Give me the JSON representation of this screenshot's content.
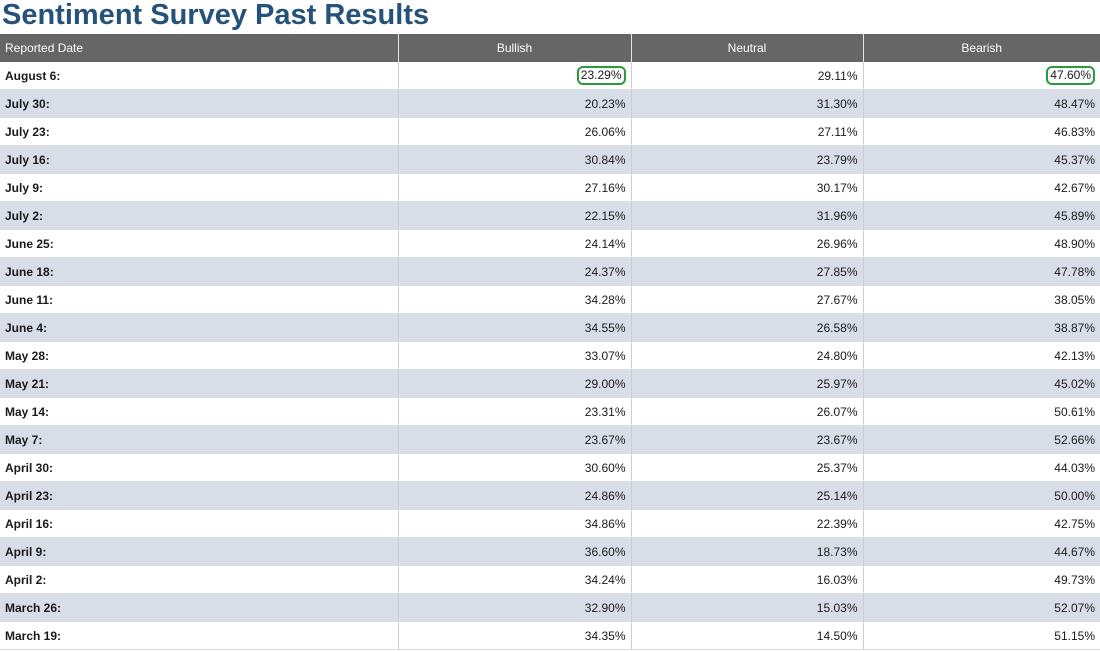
{
  "page": {
    "title": "Sentiment Survey Past Results"
  },
  "table": {
    "headers": [
      "Reported Date",
      "Bullish",
      "Neutral",
      "Bearish"
    ],
    "rows": [
      {
        "date": "August 6:",
        "bullish": "23.29%",
        "neutral": "29.11%",
        "bearish": "47.60%"
      },
      {
        "date": "July 30:",
        "bullish": "20.23%",
        "neutral": "31.30%",
        "bearish": "48.47%"
      },
      {
        "date": "July 23:",
        "bullish": "26.06%",
        "neutral": "27.11%",
        "bearish": "46.83%"
      },
      {
        "date": "July 16:",
        "bullish": "30.84%",
        "neutral": "23.79%",
        "bearish": "45.37%"
      },
      {
        "date": "July 9:",
        "bullish": "27.16%",
        "neutral": "30.17%",
        "bearish": "42.67%"
      },
      {
        "date": "July 2:",
        "bullish": "22.15%",
        "neutral": "31.96%",
        "bearish": "45.89%"
      },
      {
        "date": "June 25:",
        "bullish": "24.14%",
        "neutral": "26.96%",
        "bearish": "48.90%"
      },
      {
        "date": "June 18:",
        "bullish": "24.37%",
        "neutral": "27.85%",
        "bearish": "47.78%"
      },
      {
        "date": "June 11:",
        "bullish": "34.28%",
        "neutral": "27.67%",
        "bearish": "38.05%"
      },
      {
        "date": "June 4:",
        "bullish": "34.55%",
        "neutral": "26.58%",
        "bearish": "38.87%"
      },
      {
        "date": "May 28:",
        "bullish": "33.07%",
        "neutral": "24.80%",
        "bearish": "42.13%"
      },
      {
        "date": "May 21:",
        "bullish": "29.00%",
        "neutral": "25.97%",
        "bearish": "45.02%"
      },
      {
        "date": "May 14:",
        "bullish": "23.31%",
        "neutral": "26.07%",
        "bearish": "50.61%"
      },
      {
        "date": "May 7:",
        "bullish": "23.67%",
        "neutral": "23.67%",
        "bearish": "52.66%"
      },
      {
        "date": "April 30:",
        "bullish": "30.60%",
        "neutral": "25.37%",
        "bearish": "44.03%"
      },
      {
        "date": "April 23:",
        "bullish": "24.86%",
        "neutral": "25.14%",
        "bearish": "50.00%"
      },
      {
        "date": "April 16:",
        "bullish": "34.86%",
        "neutral": "22.39%",
        "bearish": "42.75%"
      },
      {
        "date": "April 9:",
        "bullish": "36.60%",
        "neutral": "18.73%",
        "bearish": "44.67%"
      },
      {
        "date": "April 2:",
        "bullish": "34.24%",
        "neutral": "16.03%",
        "bearish": "49.73%"
      },
      {
        "date": "March 26:",
        "bullish": "32.90%",
        "neutral": "15.03%",
        "bearish": "52.07%"
      },
      {
        "date": "March 19:",
        "bullish": "34.35%",
        "neutral": "14.50%",
        "bearish": "51.15%"
      }
    ],
    "highlight_color": "#2a9a3c",
    "highlighted_cells": [
      "rows.0.bullish",
      "rows.0.bearish"
    ]
  }
}
